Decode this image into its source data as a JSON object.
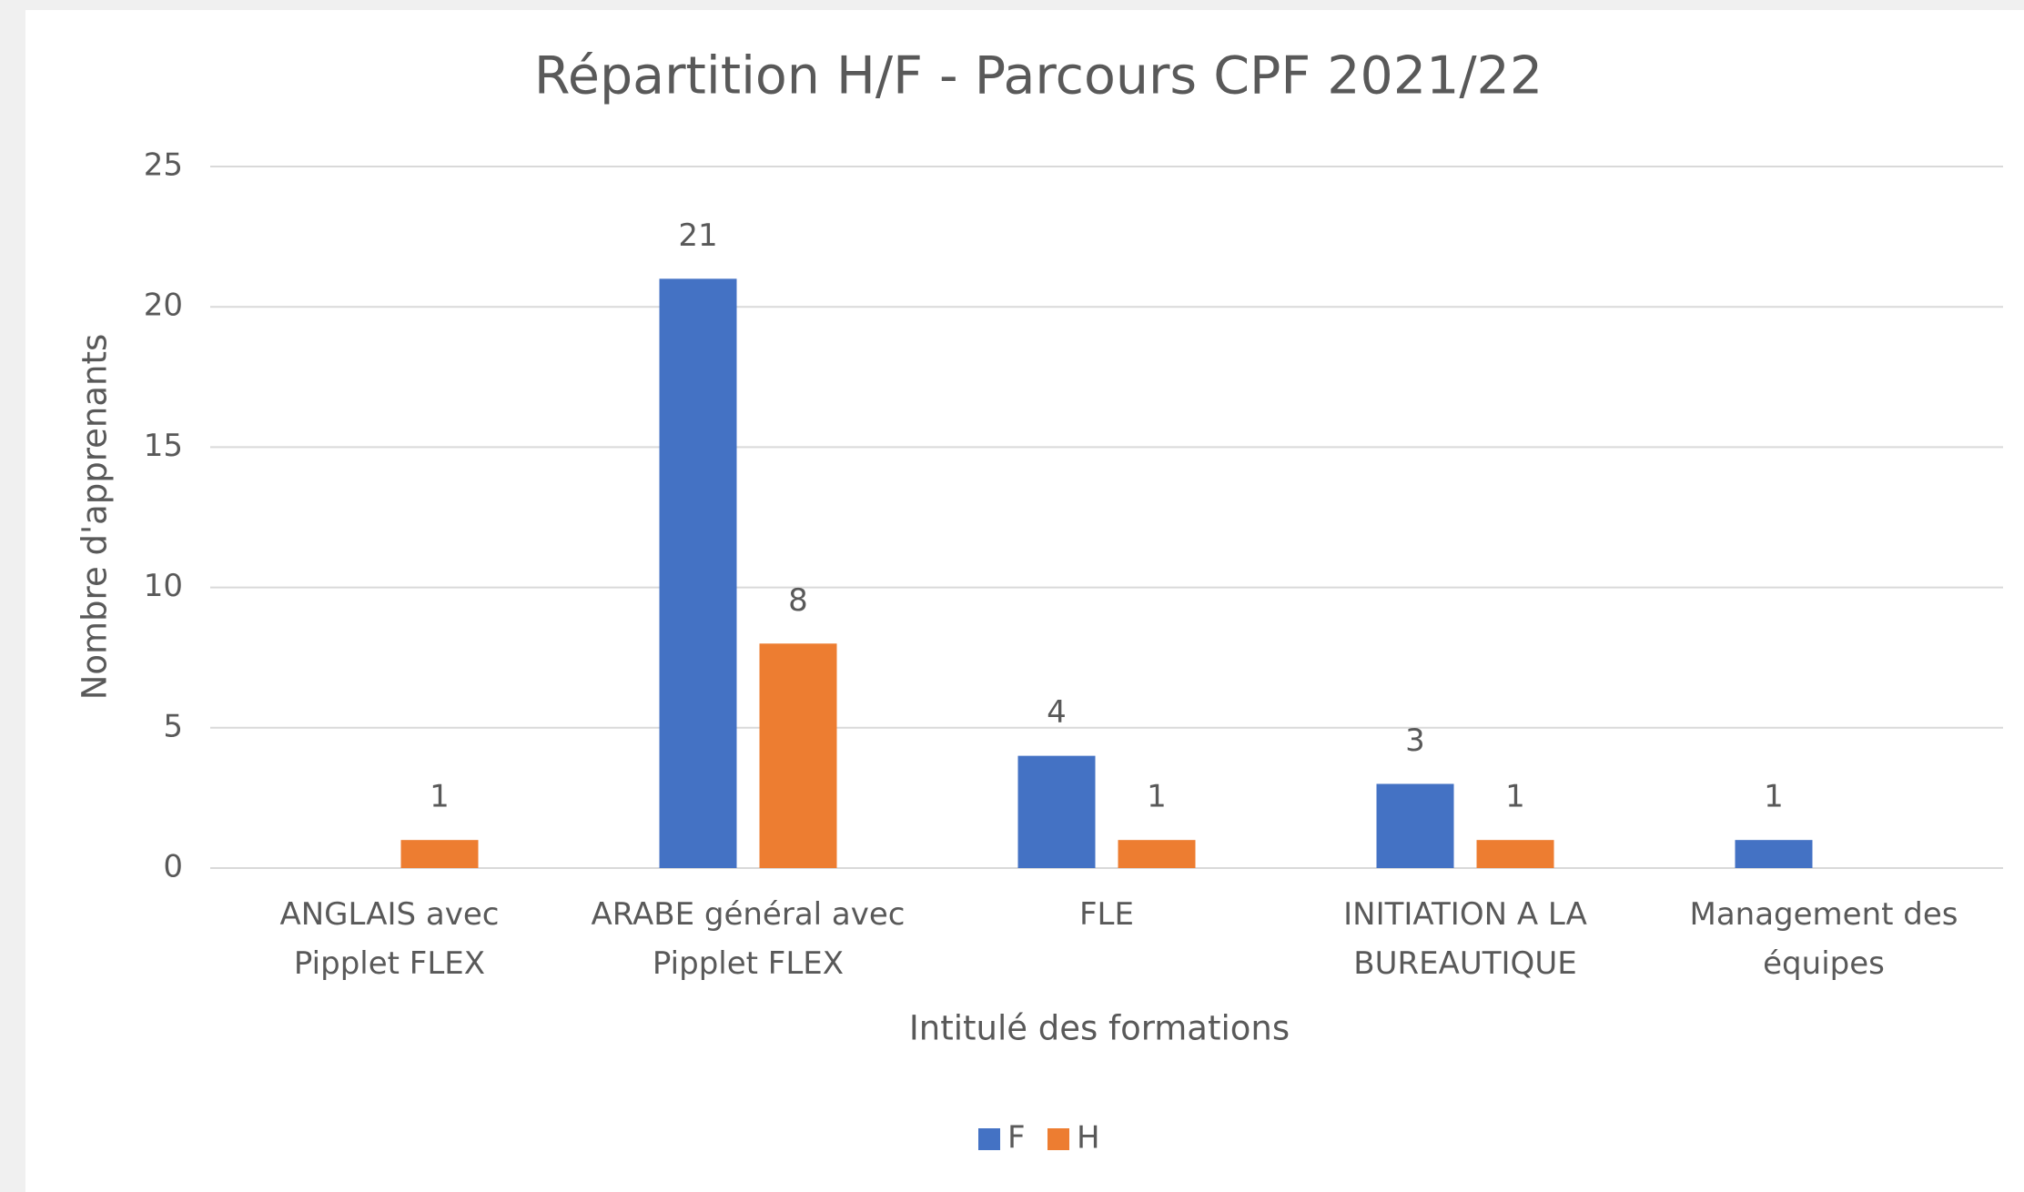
{
  "chart_data": {
    "type": "bar",
    "title": "Répartition H/F - Parcours CPF 2021/22",
    "x_label": "Intitulé des formations",
    "y_label": "Nombre d'apprenants",
    "categories": [
      "ANGLAIS avec Pipplet FLEX",
      "ARABE général avec Pipplet FLEX",
      "FLE",
      "INITIATION A LA BUREAUTIQUE",
      "Management des équipes"
    ],
    "series": [
      {
        "name": "F",
        "color": "#4472c4",
        "values": [
          null,
          21,
          4,
          3,
          1
        ]
      },
      {
        "name": "H",
        "color": "#ed7d31",
        "values": [
          1,
          8,
          1,
          1,
          null
        ]
      }
    ],
    "ylim": [
      0,
      25
    ],
    "yticks": [
      0,
      5,
      10,
      15,
      20,
      25
    ],
    "grid": true,
    "legend": "bottom"
  }
}
